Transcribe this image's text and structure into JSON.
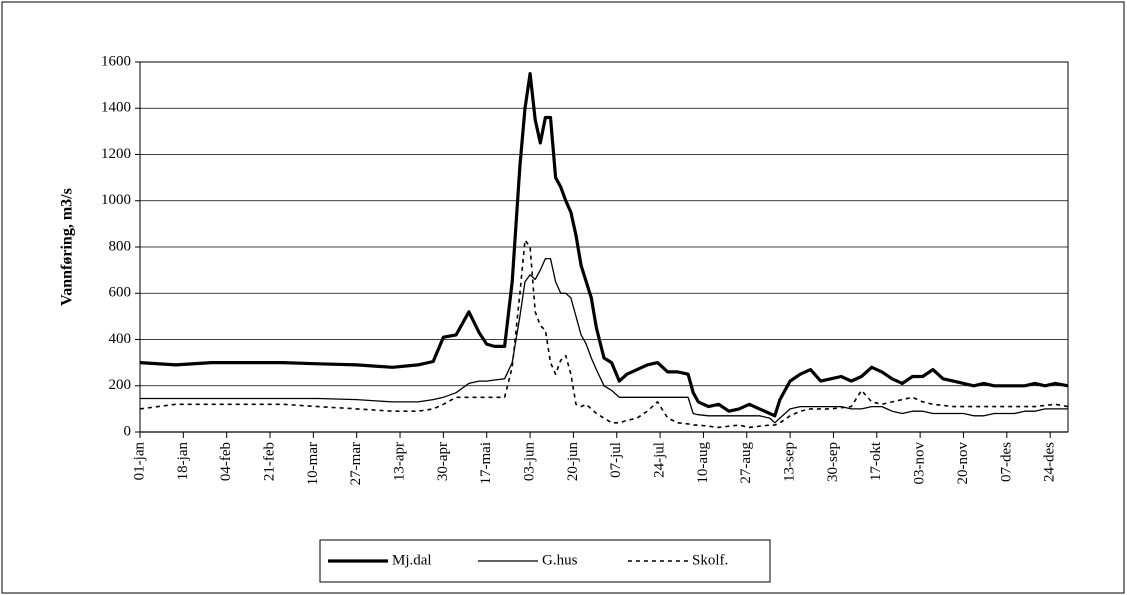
{
  "chart_data": {
    "type": "line",
    "y_label": "Vannføring, m3/s",
    "x": [
      1,
      15,
      29,
      43,
      57,
      71,
      86,
      100,
      110,
      116,
      120,
      125,
      130,
      134,
      137,
      140,
      144,
      147,
      150,
      152,
      154,
      156,
      158,
      160,
      162,
      164,
      166,
      168,
      170,
      172,
      174,
      176,
      178,
      180,
      183,
      186,
      189,
      192,
      196,
      200,
      204,
      208,
      212,
      216,
      218,
      220,
      224,
      228,
      232,
      236,
      240,
      244,
      248,
      250,
      252,
      256,
      260,
      264,
      268,
      272,
      276,
      280,
      284,
      288,
      292,
      296,
      300,
      304,
      308,
      312,
      316,
      320,
      324,
      328,
      332,
      336,
      340,
      344,
      348,
      352,
      356,
      360,
      365
    ],
    "series": [
      {
        "name": "Mj.dal",
        "color": "#000000",
        "width": 3.2,
        "dash": "none",
        "values": [
          300,
          290,
          300,
          300,
          300,
          295,
          290,
          280,
          290,
          305,
          410,
          420,
          520,
          430,
          380,
          370,
          370,
          650,
          1150,
          1400,
          1550,
          1350,
          1250,
          1360,
          1360,
          1100,
          1060,
          1000,
          950,
          850,
          720,
          650,
          580,
          450,
          320,
          300,
          220,
          250,
          270,
          290,
          300,
          260,
          260,
          250,
          170,
          130,
          110,
          120,
          90,
          100,
          120,
          100,
          80,
          70,
          140,
          220,
          250,
          270,
          220,
          230,
          240,
          220,
          240,
          280,
          260,
          230,
          210,
          240,
          240,
          270,
          230,
          220,
          210,
          200,
          210,
          200,
          200,
          200,
          200,
          210,
          200,
          210,
          200
        ]
      },
      {
        "name": "G.hus",
        "color": "#000000",
        "width": 1.3,
        "dash": "none",
        "values": [
          145,
          145,
          145,
          145,
          145,
          145,
          140,
          130,
          130,
          140,
          150,
          170,
          210,
          220,
          220,
          225,
          230,
          300,
          500,
          650,
          680,
          660,
          700,
          750,
          750,
          650,
          600,
          600,
          580,
          500,
          420,
          380,
          320,
          270,
          200,
          180,
          150,
          150,
          150,
          150,
          150,
          150,
          150,
          150,
          80,
          75,
          70,
          70,
          70,
          70,
          70,
          70,
          60,
          40,
          60,
          100,
          110,
          110,
          110,
          110,
          110,
          100,
          100,
          110,
          110,
          90,
          80,
          90,
          90,
          80,
          80,
          80,
          80,
          70,
          70,
          80,
          80,
          80,
          90,
          90,
          100,
          100,
          100
        ]
      },
      {
        "name": "Skolf.",
        "color": "#000000",
        "width": 1.6,
        "dash": "4 4",
        "values": [
          100,
          120,
          120,
          120,
          120,
          110,
          100,
          90,
          90,
          100,
          120,
          150,
          150,
          150,
          150,
          150,
          150,
          280,
          600,
          830,
          800,
          520,
          460,
          440,
          300,
          250,
          310,
          330,
          250,
          120,
          110,
          120,
          100,
          80,
          60,
          40,
          40,
          50,
          60,
          90,
          130,
          60,
          40,
          35,
          30,
          30,
          25,
          20,
          25,
          30,
          20,
          25,
          30,
          30,
          40,
          70,
          90,
          100,
          100,
          100,
          105,
          110,
          180,
          130,
          120,
          130,
          140,
          150,
          130,
          120,
          115,
          110,
          110,
          110,
          110,
          110,
          110,
          110,
          110,
          110,
          115,
          120,
          110
        ]
      }
    ],
    "xlim": [
      1,
      365
    ],
    "xticks": [
      {
        "value": 1,
        "label": "01-jan"
      },
      {
        "value": 18,
        "label": "18-jan"
      },
      {
        "value": 35,
        "label": "04-feb"
      },
      {
        "value": 52,
        "label": "21-feb"
      },
      {
        "value": 69,
        "label": "10-mar"
      },
      {
        "value": 86,
        "label": "27-mar"
      },
      {
        "value": 103,
        "label": "13-apr"
      },
      {
        "value": 120,
        "label": "30-apr"
      },
      {
        "value": 137,
        "label": "17-mai"
      },
      {
        "value": 154,
        "label": "03-jun"
      },
      {
        "value": 171,
        "label": "20-jun"
      },
      {
        "value": 188,
        "label": "07-jul"
      },
      {
        "value": 205,
        "label": "24-jul"
      },
      {
        "value": 222,
        "label": "10-aug"
      },
      {
        "value": 239,
        "label": "27-aug"
      },
      {
        "value": 256,
        "label": "13-sep"
      },
      {
        "value": 273,
        "label": "30-sep"
      },
      {
        "value": 290,
        "label": "17-okt"
      },
      {
        "value": 307,
        "label": "03-nov"
      },
      {
        "value": 324,
        "label": "20-nov"
      },
      {
        "value": 341,
        "label": "07-des"
      },
      {
        "value": 358,
        "label": "24-des"
      }
    ],
    "ylim": [
      0,
      1600
    ],
    "yticks": [
      0,
      200,
      400,
      600,
      800,
      1000,
      1200,
      1400,
      1600
    ],
    "grid": true,
    "legend": "bottom"
  }
}
